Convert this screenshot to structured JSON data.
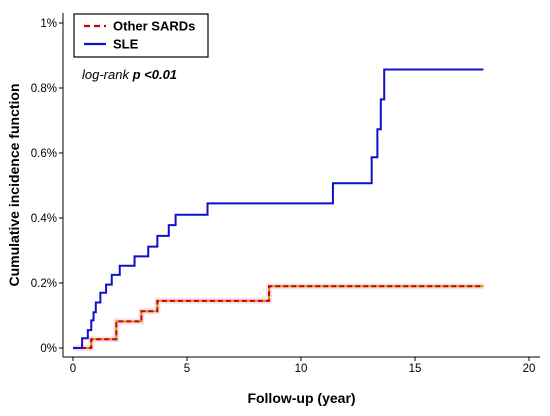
{
  "chart_data": {
    "type": "line",
    "step": true,
    "xlabel": "Follow-up (year)",
    "ylabel": "Cumulative incidence function",
    "xlim": [
      0,
      20
    ],
    "ylim": [
      0,
      1
    ],
    "x_ticks": [
      0,
      5,
      10,
      15,
      20
    ],
    "x_tick_labels": [
      "0",
      "5",
      "10",
      "15",
      "20"
    ],
    "y_ticks": [
      0,
      0.2,
      0.4,
      0.6,
      0.8,
      1.0
    ],
    "y_tick_labels": [
      "0%",
      "0.2%",
      "0.4%",
      "0.6%",
      "0.8%",
      "1%"
    ],
    "grid": false,
    "legend_position": "top-left",
    "annotation": {
      "prefix": "log-rank ",
      "value": "p <0.01"
    },
    "series": [
      {
        "name": "Other SARDs",
        "color": "#cc0000",
        "dash": "dashed",
        "x": [
          0,
          0.6,
          0.8,
          1.9,
          3.0,
          3.7,
          8.6,
          18.0
        ],
        "y": [
          0,
          0,
          0.027,
          0.082,
          0.113,
          0.145,
          0.19,
          0.19
        ]
      },
      {
        "name": "SLE",
        "color": "#1010c8",
        "dash": "solid",
        "x": [
          0,
          0.4,
          0.65,
          0.8,
          0.9,
          1.0,
          1.2,
          1.45,
          1.7,
          2.05,
          2.7,
          3.3,
          3.7,
          4.2,
          4.5,
          5.9,
          11.4,
          13.1,
          13.35,
          13.5,
          13.65,
          18.0
        ],
        "y": [
          0,
          0.03,
          0.055,
          0.085,
          0.11,
          0.14,
          0.17,
          0.195,
          0.225,
          0.253,
          0.282,
          0.312,
          0.345,
          0.378,
          0.41,
          0.445,
          0.507,
          0.587,
          0.673,
          0.765,
          0.857,
          0.857
        ]
      }
    ]
  }
}
